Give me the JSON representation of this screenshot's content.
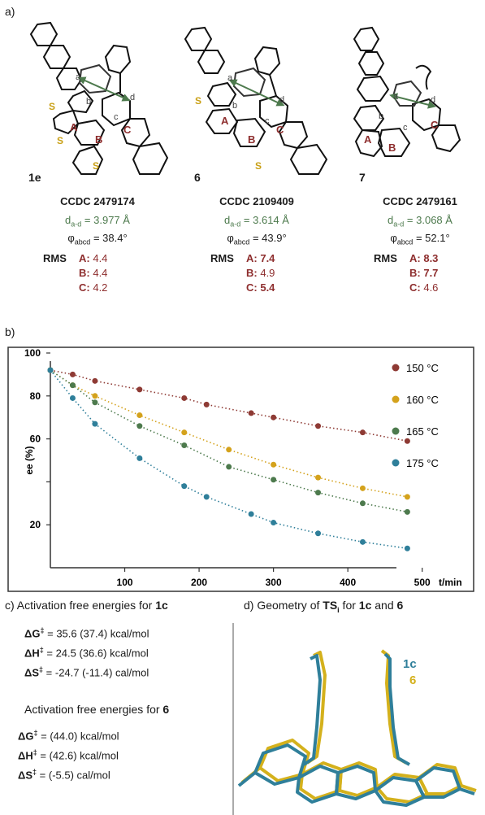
{
  "panel_a": {
    "label": "a)",
    "compounds": [
      {
        "name": "1e",
        "ccdc": "CCDC 2479174",
        "d_prefix": "d",
        "d_sub": "a-d",
        "d_value": "= 3.977 Å",
        "phi_prefix": "φ",
        "phi_sub": "abcd",
        "phi_value": "= 38.4°",
        "rms_head": "RMS",
        "rms": [
          {
            "ring": "A:",
            "value": "4.4",
            "bold": false
          },
          {
            "ring": "B:",
            "value": "4.4",
            "bold": false
          },
          {
            "ring": "C:",
            "value": "4.2",
            "bold": false
          }
        ]
      },
      {
        "name": "6",
        "ccdc": "CCDC 2109409",
        "d_prefix": "d",
        "d_sub": "a-d",
        "d_value": "= 3.614 Å",
        "phi_prefix": "φ",
        "phi_sub": "abcd",
        "phi_value": "= 43.9°",
        "rms_head": "RMS",
        "rms": [
          {
            "ring": "A:",
            "value": "7.4",
            "bold": true
          },
          {
            "ring": "B:",
            "value": "4.9",
            "bold": false
          },
          {
            "ring": "C:",
            "value": "5.4",
            "bold": true
          }
        ]
      },
      {
        "name": "7",
        "ccdc": "CCDC 2479161",
        "d_prefix": "d",
        "d_sub": "a-d",
        "d_value": "= 3.068 Å",
        "phi_prefix": "φ",
        "phi_sub": "abcd",
        "phi_value": "= 52.1°",
        "rms_head": "RMS",
        "rms": [
          {
            "ring": "A:",
            "value": "8.3",
            "bold": true
          },
          {
            "ring": "B:",
            "value": "7.7",
            "bold": true
          },
          {
            "ring": "C:",
            "value": "4.6",
            "bold": false
          }
        ]
      }
    ],
    "structure_labels": {
      "ring_a": "A",
      "ring_b": "B",
      "ring_c": "C",
      "atom_a": "a",
      "atom_b": "b",
      "atom_c": "c",
      "atom_d": "d",
      "sulfur": "S"
    }
  },
  "panel_b": {
    "label": "b)"
  },
  "chart_data": {
    "type": "scatter",
    "title": "",
    "xlabel": "t/min",
    "ylabel": "ee (%)",
    "xlim": [
      0,
      520
    ],
    "ylim": [
      0,
      100
    ],
    "xticks": [
      100,
      200,
      300,
      400,
      500
    ],
    "yticks": [
      20,
      40,
      60,
      80,
      100
    ],
    "ytick_labels": [
      "20",
      "",
      "60",
      "80",
      "100"
    ],
    "grid": false,
    "legend_position": "right",
    "series": [
      {
        "name": "150 °C",
        "color": "#8e3a34",
        "x": [
          0,
          30,
          60,
          120,
          180,
          210,
          270,
          300,
          360,
          420,
          480
        ],
        "y": [
          92,
          90,
          87,
          83,
          79,
          76,
          72,
          70,
          66,
          63,
          59
        ]
      },
      {
        "name": "160 °C",
        "color": "#d4a21c",
        "x": [
          0,
          30,
          60,
          120,
          180,
          240,
          300,
          360,
          420,
          480
        ],
        "y": [
          92,
          85,
          80,
          71,
          63,
          55,
          48,
          42,
          37,
          33
        ]
      },
      {
        "name": "165 °C",
        "color": "#4d7a4d",
        "x": [
          0,
          30,
          60,
          120,
          180,
          240,
          300,
          360,
          420,
          480
        ],
        "y": [
          92,
          85,
          77,
          66,
          57,
          47,
          41,
          35,
          30,
          26
        ]
      },
      {
        "name": "175 °C",
        "color": "#2f7f9a",
        "x": [
          0,
          30,
          60,
          120,
          180,
          210,
          270,
          300,
          360,
          420,
          480
        ],
        "y": [
          92,
          79,
          67,
          51,
          38,
          33,
          25,
          21,
          16,
          12,
          9
        ]
      }
    ]
  },
  "panel_c": {
    "label": "c)",
    "title_text": "Activation free energies for ",
    "title_cmpd": "1c",
    "rows_1c": [
      {
        "symbol": "ΔG",
        "sup": "‡",
        "value": "= 35.6 (37.4) kcal/mol"
      },
      {
        "symbol": "ΔH",
        "sup": "‡",
        "value": "= 24.5 (36.6) kcal/mol"
      },
      {
        "symbol": "ΔS",
        "sup": "‡",
        "value": "= -24.7 (-11.4) cal/mol"
      }
    ],
    "subtitle_text": "Activation free energies for ",
    "subtitle_cmpd": "6",
    "rows_6": [
      {
        "symbol": "ΔG",
        "sup": "‡",
        "value": "= (44.0) kcal/mol"
      },
      {
        "symbol": "ΔH",
        "sup": "‡",
        "value": "= (42.6) kcal/mol"
      },
      {
        "symbol": "ΔS",
        "sup": "‡",
        "value": "= (-5.5) cal/mol"
      }
    ]
  },
  "panel_d": {
    "label": "d)",
    "title_text": "Geometry of ",
    "ts": "TS",
    "ts_sub": "i",
    "title_mid": " for ",
    "cmpd1": "1c",
    "and_text": " and ",
    "cmpd2": "6",
    "legend": [
      {
        "name": "1c",
        "color": "#2f7f9a"
      },
      {
        "name": "6",
        "color": "#d4b11c"
      }
    ]
  },
  "colors": {
    "ring_label": "#8e2e2e",
    "distance_green": "#4d7a4d",
    "sulfur": "#c9a016"
  }
}
